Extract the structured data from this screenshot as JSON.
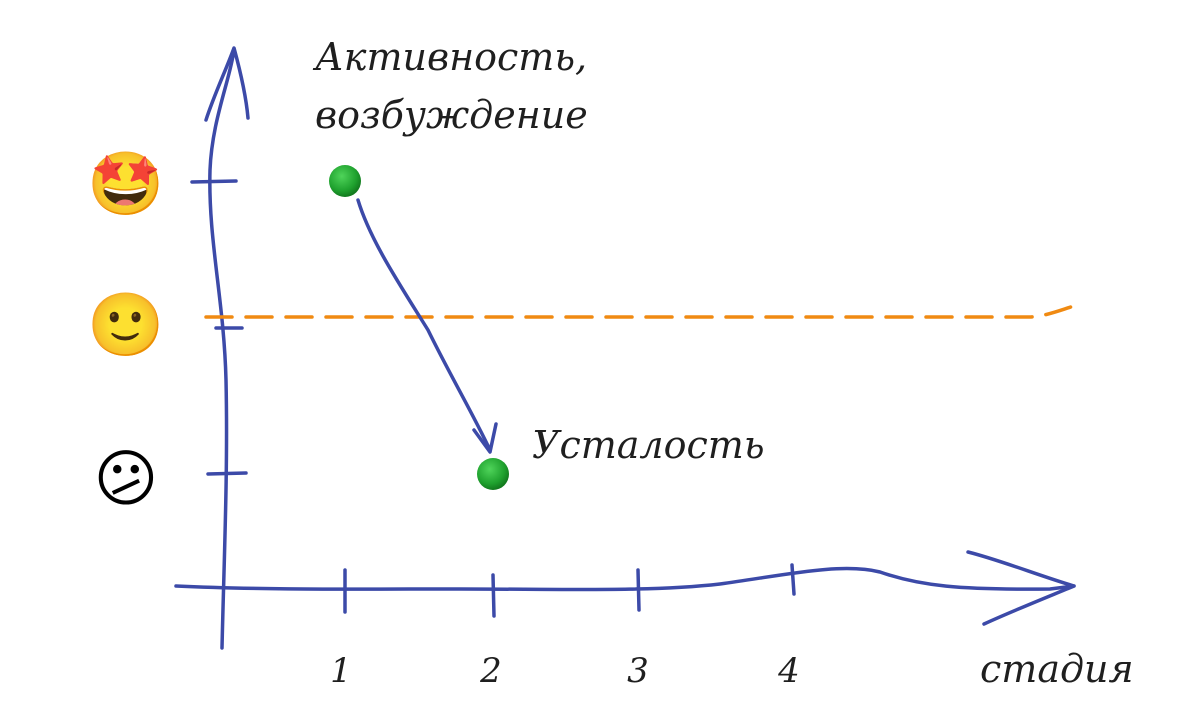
{
  "labels": {
    "y_axis_line1": "Активность,",
    "y_axis_line2": "возбуждение",
    "x_axis": "стадия",
    "point_label": "Усталость"
  },
  "x_ticks": [
    "1",
    "2",
    "3",
    "4"
  ],
  "y_levels": [
    {
      "icon": "star-struck-face-icon",
      "glyph": "🤩"
    },
    {
      "icon": "slightly-smiling-face-icon",
      "glyph": "🙂"
    },
    {
      "icon": "confused-face-icon",
      "glyph": "😕"
    }
  ],
  "colors": {
    "axis": "#3c4aa8",
    "threshold": "#f08a12",
    "point": "#1fa12e"
  }
}
